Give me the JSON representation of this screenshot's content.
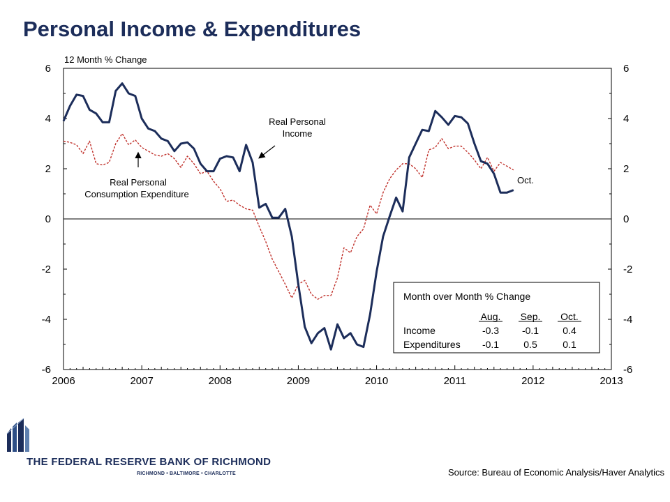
{
  "page": {
    "title": "Personal Income & Expenditures",
    "source": "Source: Bureau of Economic Analysis/Haver Analytics",
    "bank_name": "THE FEDERAL RESERVE BANK OF RICHMOND",
    "bank_cities": "RICHMOND • BALTIMORE • CHARLOTTE",
    "brand_color": "#1c2d5a"
  },
  "chart_data": {
    "type": "line",
    "title": "",
    "ylabel": "12 Month % Change",
    "xlabel": "",
    "xlim": [
      2006,
      2013
    ],
    "ylim": [
      -6,
      6
    ],
    "x_ticks": [
      "2006",
      "2007",
      "2008",
      "2009",
      "2010",
      "2011",
      "2012",
      "2013"
    ],
    "y_ticks": [
      "6",
      "4",
      "2",
      "0",
      "-2",
      "-4",
      "-6"
    ],
    "y_tick_values": [
      6,
      4,
      2,
      0,
      -2,
      -4,
      -6
    ],
    "grid": false,
    "zero_line": true,
    "series": [
      {
        "name": "Real Personal Income",
        "color": "#1c2d5a",
        "style": "solid",
        "x": [
          2006.0,
          2006.083,
          2006.167,
          2006.25,
          2006.333,
          2006.417,
          2006.5,
          2006.583,
          2006.667,
          2006.75,
          2006.833,
          2006.917,
          2007.0,
          2007.083,
          2007.167,
          2007.25,
          2007.333,
          2007.417,
          2007.5,
          2007.583,
          2007.667,
          2007.75,
          2007.833,
          2007.917,
          2008.0,
          2008.083,
          2008.167,
          2008.25,
          2008.333,
          2008.417,
          2008.5,
          2008.583,
          2008.667,
          2008.75,
          2008.833,
          2008.917,
          2009.0,
          2009.083,
          2009.167,
          2009.25,
          2009.333,
          2009.417,
          2009.5,
          2009.583,
          2009.667,
          2009.75,
          2009.833,
          2009.917,
          2010.0,
          2010.083,
          2010.167,
          2010.25,
          2010.333,
          2010.417,
          2010.5,
          2010.583,
          2010.667,
          2010.75,
          2010.833,
          2010.917,
          2011.0,
          2011.083,
          2011.167,
          2011.25,
          2011.333,
          2011.417,
          2011.5,
          2011.583,
          2011.667,
          2011.75
        ],
        "values": [
          3.9,
          4.5,
          4.95,
          4.9,
          4.35,
          4.2,
          3.85,
          3.85,
          5.1,
          5.4,
          5.0,
          4.9,
          4.0,
          3.6,
          3.5,
          3.2,
          3.1,
          2.7,
          3.0,
          3.05,
          2.8,
          2.2,
          1.9,
          1.9,
          2.4,
          2.5,
          2.45,
          1.9,
          2.95,
          2.25,
          0.45,
          0.6,
          0.05,
          0.05,
          0.4,
          -0.7,
          -2.6,
          -4.3,
          -4.95,
          -4.55,
          -4.35,
          -5.2,
          -4.2,
          -4.75,
          -4.55,
          -5.0,
          -5.1,
          -3.8,
          -2.1,
          -0.7,
          0.1,
          0.85,
          0.3,
          2.45,
          3.0,
          3.55,
          3.5,
          4.3,
          4.05,
          3.75,
          4.1,
          4.05,
          3.8,
          3.0,
          2.3,
          2.2,
          1.8,
          1.05,
          1.05,
          1.15
        ]
      },
      {
        "name": "Real Personal Consumption Expenditure",
        "color": "#c0302a",
        "style": "dashed",
        "x": [
          2006.0,
          2006.083,
          2006.167,
          2006.25,
          2006.333,
          2006.417,
          2006.5,
          2006.583,
          2006.667,
          2006.75,
          2006.833,
          2006.917,
          2007.0,
          2007.083,
          2007.167,
          2007.25,
          2007.333,
          2007.417,
          2007.5,
          2007.583,
          2007.667,
          2007.75,
          2007.833,
          2007.917,
          2008.0,
          2008.083,
          2008.167,
          2008.25,
          2008.333,
          2008.417,
          2008.5,
          2008.583,
          2008.667,
          2008.75,
          2008.833,
          2008.917,
          2009.0,
          2009.083,
          2009.167,
          2009.25,
          2009.333,
          2009.417,
          2009.5,
          2009.583,
          2009.667,
          2009.75,
          2009.833,
          2009.917,
          2010.0,
          2010.083,
          2010.167,
          2010.25,
          2010.333,
          2010.417,
          2010.5,
          2010.583,
          2010.667,
          2010.75,
          2010.833,
          2010.917,
          2011.0,
          2011.083,
          2011.167,
          2011.25,
          2011.333,
          2011.417,
          2011.5,
          2011.583,
          2011.667,
          2011.75
        ],
        "values": [
          3.1,
          3.05,
          2.95,
          2.6,
          3.1,
          2.2,
          2.15,
          2.25,
          3.0,
          3.4,
          2.95,
          3.15,
          2.85,
          2.7,
          2.55,
          2.5,
          2.6,
          2.4,
          2.05,
          2.5,
          2.2,
          1.8,
          1.9,
          1.5,
          1.2,
          0.7,
          0.75,
          0.55,
          0.4,
          0.35,
          -0.3,
          -0.9,
          -1.6,
          -2.1,
          -2.6,
          -3.15,
          -2.6,
          -2.45,
          -3.0,
          -3.2,
          -3.05,
          -3.05,
          -2.35,
          -1.15,
          -1.35,
          -0.7,
          -0.4,
          0.55,
          0.2,
          1.05,
          1.6,
          1.95,
          2.2,
          2.2,
          2.0,
          1.65,
          2.75,
          2.85,
          3.2,
          2.8,
          2.9,
          2.9,
          2.65,
          2.35,
          2.0,
          2.45,
          1.9,
          2.25,
          2.1,
          1.95
        ]
      }
    ],
    "annotations": [
      {
        "text": "Real Personal",
        "line2": "Income"
      },
      {
        "text": "Real Personal",
        "line2": "Consumption Expenditure"
      },
      {
        "text": "Oct."
      }
    ],
    "inset_table": {
      "title": "Month over Month % Change",
      "columns": [
        "Aug.",
        "Sep.",
        "Oct."
      ],
      "rows": [
        {
          "label": "Income",
          "values": [
            "-0.3",
            "-0.1",
            "0.4"
          ]
        },
        {
          "label": "Expenditures",
          "values": [
            "-0.1",
            "0.5",
            "0.1"
          ]
        }
      ]
    }
  }
}
